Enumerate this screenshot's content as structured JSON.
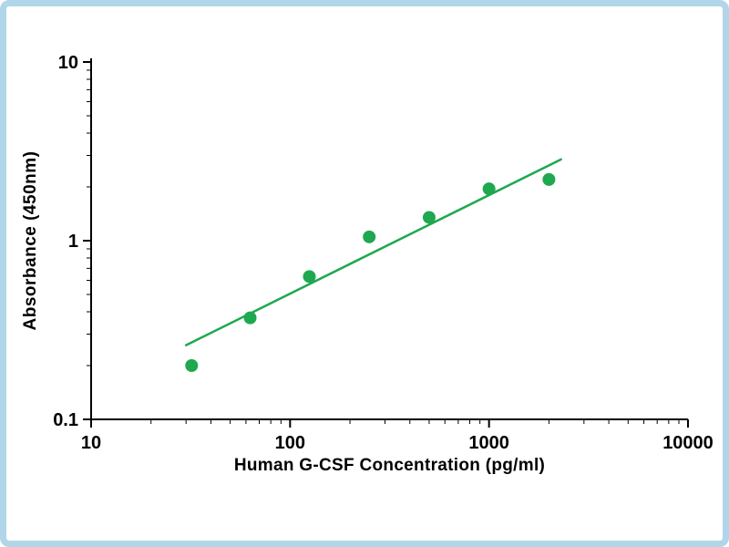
{
  "chart_data": {
    "type": "scatter",
    "title": "",
    "xlabel": "Human G-CSF Concentration (pg/ml)",
    "ylabel": "Absorbance (450nm)",
    "x_scale": "log",
    "y_scale": "log",
    "xlim": [
      10,
      10000
    ],
    "ylim": [
      0.1,
      10
    ],
    "x_ticks": [
      10,
      100,
      1000,
      10000
    ],
    "x_tick_labels": [
      "10",
      "100",
      "1000",
      "10000"
    ],
    "y_ticks": [
      0.1,
      1,
      10
    ],
    "y_tick_labels": [
      "0.1",
      "1",
      "10"
    ],
    "minor_ticks": true,
    "grid": false,
    "legend": "none",
    "points": [
      {
        "x": 32,
        "y": 0.2
      },
      {
        "x": 63,
        "y": 0.37
      },
      {
        "x": 125,
        "y": 0.63
      },
      {
        "x": 250,
        "y": 1.05
      },
      {
        "x": 500,
        "y": 1.35
      },
      {
        "x": 1000,
        "y": 1.95
      },
      {
        "x": 2000,
        "y": 2.2
      }
    ],
    "trend_line": {
      "x1": 30,
      "y1": 0.26,
      "x2": 2300,
      "y2": 2.85
    },
    "point_color": "#1fa84f",
    "line_color": "#1fa84f",
    "axis_color": "#000000",
    "tick_label_color": "#000000"
  },
  "frame": {
    "border_color": "#b2d6e9",
    "background_color": "#ffffff"
  }
}
